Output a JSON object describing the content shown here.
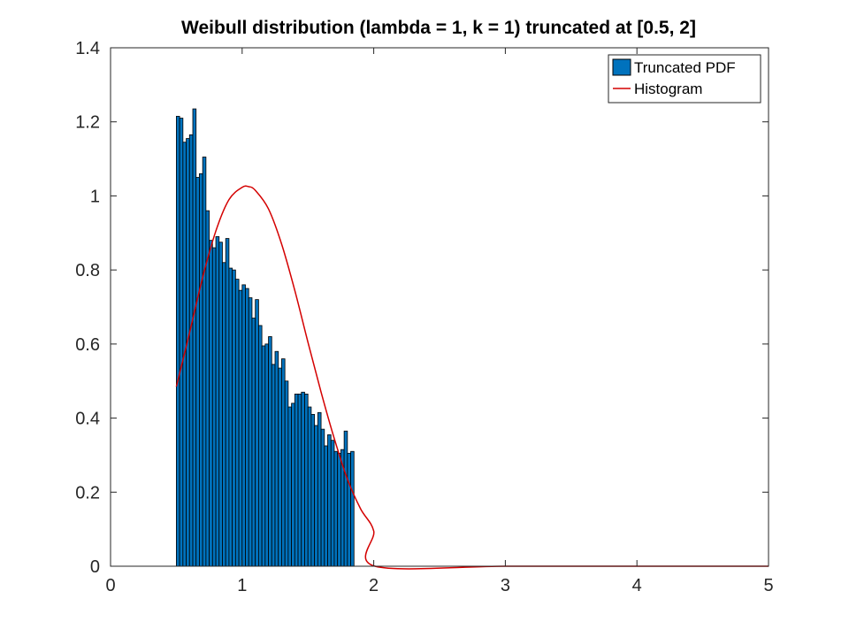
{
  "chart_data": {
    "type": "bar",
    "title": "Weibull distribution (lambda = 1, k = 1) truncated at [0.5, 2]",
    "xlabel": "",
    "ylabel": "",
    "xlim": [
      0,
      5
    ],
    "ylim": [
      0,
      1.4
    ],
    "xticks": [
      "0",
      "1",
      "2",
      "3",
      "4",
      "5"
    ],
    "yticks": [
      "0",
      "0.2",
      "0.4",
      "0.6",
      "0.8",
      "1",
      "1.2",
      "1.4"
    ],
    "grid": false,
    "legend_position": "top-right",
    "legend": [
      "Truncated PDF",
      "Histogram"
    ],
    "colors": {
      "bars": "#0072BD",
      "bar_edge": "#000000",
      "line": "#D40000"
    },
    "bins": {
      "start": 0.5,
      "width": 0.025,
      "values": [
        1.215,
        1.21,
        1.145,
        1.155,
        1.165,
        1.235,
        1.05,
        1.06,
        1.105,
        0.96,
        0.88,
        0.86,
        0.89,
        0.875,
        0.82,
        0.885,
        0.805,
        0.8,
        0.775,
        0.745,
        0.76,
        0.75,
        0.725,
        0.67,
        0.72,
        0.65,
        0.595,
        0.6,
        0.62,
        0.545,
        0.58,
        0.535,
        0.56,
        0.5,
        0.43,
        0.44,
        0.465,
        0.465,
        0.47,
        0.465,
        0.43,
        0.41,
        0.38,
        0.415,
        0.37,
        0.325,
        0.355,
        0.34,
        0.31,
        0.305,
        0.315,
        0.365,
        0.305,
        0.31
      ]
    },
    "curve": {
      "x": [
        0.5,
        0.6,
        0.7,
        0.8,
        0.9,
        1.0,
        1.05,
        1.1,
        1.2,
        1.3,
        1.4,
        1.5,
        1.6,
        1.7,
        1.8,
        1.9,
        2.0,
        2.01,
        3.0,
        4.0,
        5.0
      ],
      "y": [
        0.485,
        0.63,
        0.78,
        0.905,
        0.99,
        1.023,
        1.025,
        1.015,
        0.965,
        0.87,
        0.745,
        0.605,
        0.47,
        0.345,
        0.235,
        0.155,
        0.095,
        0.0,
        0.0,
        0.0,
        0.0
      ]
    }
  }
}
